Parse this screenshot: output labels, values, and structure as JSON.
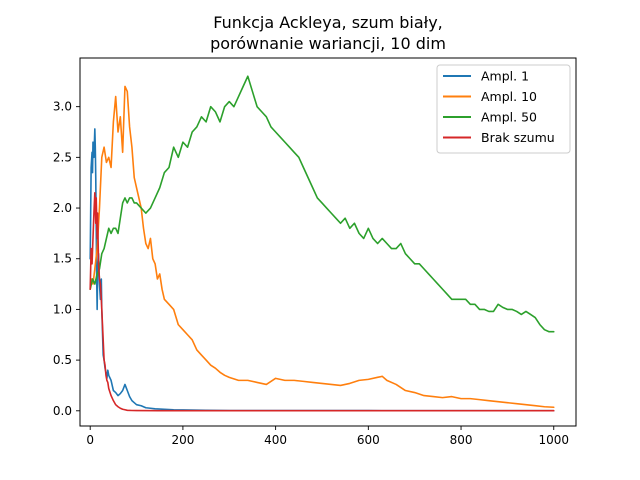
{
  "chart_data": {
    "type": "line",
    "title_line1": "Funkcja Ackleya, szum biały,",
    "title_line2": "porównanie wariancji, 10 dim",
    "xlabel": "",
    "ylabel": "",
    "xlim": [
      -22,
      1048
    ],
    "ylim": [
      -0.15,
      3.48
    ],
    "grid": false,
    "legend_position": "top-right",
    "x_ticks": [
      0,
      200,
      400,
      600,
      800,
      1000
    ],
    "x_tick_labels": [
      "0",
      "200",
      "400",
      "600",
      "800",
      "1000"
    ],
    "y_ticks": [
      0.0,
      0.5,
      1.0,
      1.5,
      2.0,
      2.5,
      3.0
    ],
    "y_tick_labels": [
      "0.0",
      "0.5",
      "1.0",
      "1.5",
      "2.0",
      "2.5",
      "3.0"
    ],
    "series": [
      {
        "name": "Ampl. 1",
        "color": "#1f77b4",
        "x": [
          0,
          2,
          4,
          5,
          6,
          8,
          10,
          11,
          12,
          13,
          14,
          15,
          16,
          18,
          20,
          22,
          24,
          25,
          26,
          28,
          30,
          32,
          34,
          36,
          38,
          40,
          45,
          50,
          55,
          60,
          65,
          70,
          75,
          80,
          85,
          90,
          95,
          100,
          110,
          120,
          130,
          140,
          160,
          180,
          200,
          250,
          300,
          400,
          500,
          600,
          700,
          800,
          900,
          1000
        ],
        "y": [
          1.5,
          2.4,
          2.55,
          2.35,
          2.65,
          2.5,
          2.78,
          2.6,
          2.3,
          1.8,
          1.3,
          1.0,
          1.35,
          1.55,
          1.25,
          1.1,
          1.3,
          1.0,
          0.85,
          0.55,
          0.5,
          0.42,
          0.38,
          0.32,
          0.4,
          0.35,
          0.3,
          0.2,
          0.18,
          0.15,
          0.17,
          0.2,
          0.26,
          0.2,
          0.14,
          0.1,
          0.08,
          0.06,
          0.05,
          0.03,
          0.025,
          0.02,
          0.015,
          0.01,
          0.008,
          0.005,
          0.003,
          0.002,
          0.002,
          0.002,
          0.001,
          0.001,
          0.001,
          0.001
        ]
      },
      {
        "name": "Ampl. 10",
        "color": "#ff7f0e",
        "x": [
          0,
          3,
          6,
          10,
          15,
          20,
          25,
          30,
          35,
          40,
          45,
          50,
          55,
          60,
          65,
          70,
          75,
          80,
          85,
          90,
          95,
          100,
          105,
          110,
          115,
          120,
          125,
          130,
          135,
          140,
          145,
          150,
          155,
          160,
          170,
          180,
          190,
          200,
          210,
          220,
          230,
          240,
          250,
          260,
          270,
          280,
          290,
          300,
          320,
          340,
          360,
          380,
          400,
          420,
          440,
          460,
          480,
          500,
          520,
          540,
          560,
          580,
          600,
          620,
          630,
          640,
          660,
          680,
          700,
          720,
          740,
          760,
          780,
          800,
          820,
          840,
          860,
          880,
          900,
          920,
          940,
          960,
          980,
          1000
        ],
        "y": [
          1.2,
          1.3,
          1.25,
          1.4,
          1.6,
          2.0,
          2.5,
          2.6,
          2.45,
          2.5,
          2.4,
          2.85,
          3.1,
          2.75,
          2.9,
          2.55,
          3.2,
          3.15,
          2.8,
          2.6,
          2.3,
          2.2,
          2.1,
          2.0,
          1.8,
          1.65,
          1.6,
          1.7,
          1.5,
          1.45,
          1.3,
          1.35,
          1.2,
          1.1,
          1.05,
          1.0,
          0.85,
          0.8,
          0.75,
          0.7,
          0.6,
          0.55,
          0.5,
          0.45,
          0.42,
          0.38,
          0.35,
          0.33,
          0.3,
          0.3,
          0.28,
          0.26,
          0.32,
          0.3,
          0.3,
          0.29,
          0.28,
          0.27,
          0.26,
          0.25,
          0.27,
          0.3,
          0.31,
          0.33,
          0.34,
          0.3,
          0.26,
          0.2,
          0.18,
          0.15,
          0.14,
          0.13,
          0.14,
          0.12,
          0.12,
          0.11,
          0.1,
          0.09,
          0.08,
          0.07,
          0.06,
          0.05,
          0.04,
          0.035
        ]
      },
      {
        "name": "Ampl. 50",
        "color": "#2ca02c",
        "x": [
          0,
          5,
          10,
          15,
          20,
          25,
          30,
          35,
          40,
          45,
          50,
          55,
          60,
          65,
          70,
          75,
          80,
          85,
          90,
          95,
          100,
          110,
          120,
          130,
          140,
          150,
          160,
          170,
          180,
          190,
          200,
          210,
          220,
          230,
          240,
          250,
          260,
          270,
          280,
          290,
          300,
          310,
          320,
          330,
          340,
          350,
          360,
          370,
          380,
          390,
          400,
          410,
          420,
          430,
          440,
          450,
          460,
          470,
          480,
          490,
          500,
          510,
          520,
          530,
          540,
          550,
          560,
          570,
          580,
          590,
          600,
          610,
          620,
          630,
          640,
          650,
          660,
          670,
          680,
          690,
          700,
          710,
          720,
          730,
          740,
          750,
          760,
          770,
          780,
          790,
          800,
          810,
          820,
          830,
          840,
          850,
          860,
          870,
          880,
          890,
          900,
          910,
          920,
          930,
          940,
          950,
          960,
          970,
          980,
          990,
          1000
        ],
        "y": [
          1.2,
          1.3,
          1.25,
          1.35,
          1.4,
          1.55,
          1.6,
          1.7,
          1.8,
          1.75,
          1.8,
          1.8,
          1.75,
          1.9,
          2.05,
          2.1,
          2.05,
          2.1,
          2.1,
          2.05,
          2.05,
          2.0,
          1.95,
          2.0,
          2.1,
          2.2,
          2.35,
          2.4,
          2.6,
          2.5,
          2.65,
          2.6,
          2.75,
          2.8,
          2.9,
          2.85,
          3.0,
          2.95,
          2.85,
          3.0,
          3.05,
          3.0,
          3.1,
          3.2,
          3.3,
          3.15,
          3.0,
          2.95,
          2.9,
          2.8,
          2.75,
          2.7,
          2.65,
          2.6,
          2.55,
          2.5,
          2.4,
          2.3,
          2.2,
          2.1,
          2.05,
          2.0,
          1.95,
          1.9,
          1.85,
          1.9,
          1.8,
          1.85,
          1.75,
          1.7,
          1.8,
          1.7,
          1.65,
          1.7,
          1.65,
          1.6,
          1.6,
          1.65,
          1.55,
          1.5,
          1.45,
          1.45,
          1.4,
          1.35,
          1.3,
          1.25,
          1.2,
          1.15,
          1.1,
          1.1,
          1.1,
          1.1,
          1.05,
          1.05,
          1.0,
          1.0,
          0.98,
          0.98,
          1.05,
          1.02,
          1.0,
          1.0,
          0.98,
          0.95,
          0.98,
          0.95,
          0.92,
          0.85,
          0.8,
          0.78,
          0.78
        ]
      },
      {
        "name": "Brak szumu",
        "color": "#d62728",
        "x": [
          0,
          2,
          4,
          6,
          8,
          10,
          11,
          12,
          13,
          14,
          15,
          16,
          18,
          20,
          22,
          24,
          26,
          28,
          30,
          32,
          34,
          36,
          38,
          40,
          45,
          50,
          55,
          60,
          65,
          70,
          75,
          80,
          90,
          100,
          150,
          200,
          300,
          400,
          500,
          600,
          700,
          800,
          900,
          1000
        ],
        "y": [
          1.2,
          1.6,
          1.45,
          1.7,
          1.95,
          2.15,
          2.0,
          1.85,
          2.1,
          1.9,
          1.7,
          1.95,
          1.45,
          1.3,
          1.25,
          1.1,
          0.9,
          0.7,
          0.5,
          0.45,
          0.35,
          0.3,
          0.28,
          0.22,
          0.15,
          0.1,
          0.06,
          0.04,
          0.025,
          0.015,
          0.01,
          0.005,
          0.003,
          0.002,
          0.001,
          0.001,
          0.001,
          0.001,
          0.001,
          0.001,
          0.001,
          0.001,
          0.001,
          0.001
        ]
      }
    ]
  }
}
